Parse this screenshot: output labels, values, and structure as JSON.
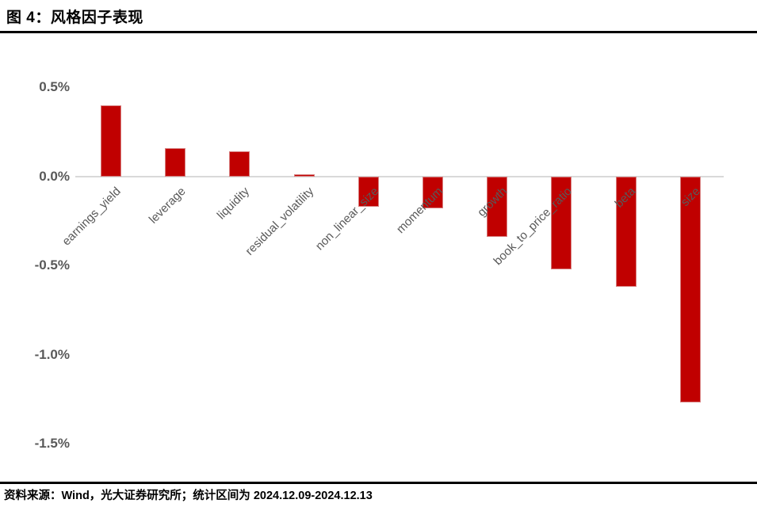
{
  "title": "图 4：风格因子表现",
  "source_note": "资料来源：Wind，光大证券研究所；统计区间为 2024.12.09-2024.12.13",
  "colors": {
    "bar": "#c00000",
    "bar_edge": "#d77f7f",
    "axis_line": "#d9d9d9",
    "tick_text": "#595959",
    "title_text": "#000000"
  },
  "chart_data": {
    "type": "bar",
    "title": "图 4：风格因子表现",
    "categories": [
      "earnings_yield",
      "leverage",
      "liquidity",
      "residual_volatility",
      "non_linear_size",
      "momentum",
      "growth",
      "book_to_price_ratio",
      "beta",
      "size"
    ],
    "values": [
      0.4,
      0.16,
      0.14,
      0.01,
      -0.17,
      -0.18,
      -0.34,
      -0.52,
      -0.62,
      -1.27
    ],
    "value_unit": "%",
    "xlabel": "",
    "ylabel": "",
    "ylim": [
      -1.5,
      0.5
    ],
    "yticks": [
      "0.5%",
      "0.0%",
      "-0.5%",
      "-1.0%",
      "-1.5%"
    ],
    "ytick_values": [
      0.5,
      0.0,
      -0.5,
      -1.0,
      -1.5
    ],
    "grid": false,
    "legend": false,
    "bar_color": "#c00000",
    "category_label_rotation_deg": 45
  }
}
